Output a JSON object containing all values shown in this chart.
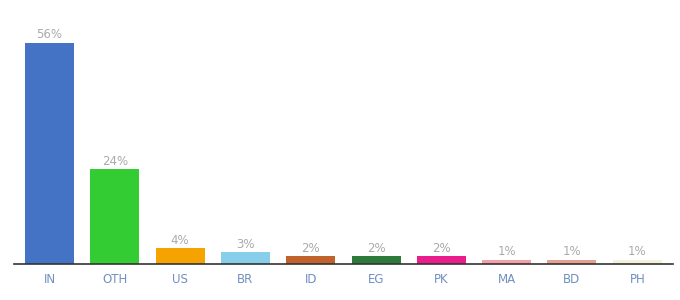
{
  "categories": [
    "IN",
    "OTH",
    "US",
    "BR",
    "ID",
    "EG",
    "PK",
    "MA",
    "BD",
    "PH"
  ],
  "values": [
    56,
    24,
    4,
    3,
    2,
    2,
    2,
    1,
    1,
    1
  ],
  "bar_colors": [
    "#4472c4",
    "#33cc33",
    "#f4a300",
    "#87ceeb",
    "#c0622b",
    "#2d7a3a",
    "#e91e8c",
    "#f4a0a8",
    "#e8a090",
    "#f5f0d8"
  ],
  "label_color": "#aaaaaa",
  "tick_color": "#7090c0",
  "background_color": "#ffffff",
  "ylim": [
    0,
    63
  ],
  "bar_width": 0.75,
  "label_fontsize": 8.5,
  "tick_fontsize": 8.5
}
